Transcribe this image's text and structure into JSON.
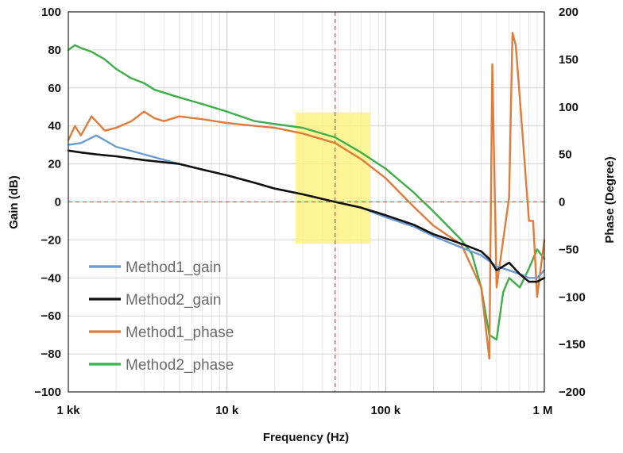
{
  "chart_data": {
    "type": "line",
    "xlabel": "Frequency (Hz)",
    "ylabel": "Gain (dB)",
    "y2label": "Phase (Degree)",
    "xscale": "log",
    "xlim": [
      1000,
      1000000
    ],
    "ylim": [
      -100,
      100
    ],
    "y2lim": [
      -200,
      200
    ],
    "grid": true,
    "x_ticks": [
      {
        "value": 1000,
        "label": "1 kk"
      },
      {
        "value": 10000,
        "label": "10 k"
      },
      {
        "value": 100000,
        "label": "100 k"
      },
      {
        "value": 1000000,
        "label": "1 M"
      }
    ],
    "y_ticks": [
      {
        "value": 100,
        "label": "100"
      },
      {
        "value": 80,
        "label": "80"
      },
      {
        "value": 60,
        "label": "60"
      },
      {
        "value": 40,
        "label": "40"
      },
      {
        "value": 20,
        "label": "20"
      },
      {
        "value": 0,
        "label": "0"
      },
      {
        "value": -20,
        "label": "−20"
      },
      {
        "value": -40,
        "label": "−40"
      },
      {
        "value": -60,
        "label": "−60"
      },
      {
        "value": -80,
        "label": "−80"
      },
      {
        "value": -100,
        "label": "−100"
      }
    ],
    "y2_ticks": [
      {
        "value": 200,
        "label": "200"
      },
      {
        "value": 150,
        "label": "150"
      },
      {
        "value": 100,
        "label": "100"
      },
      {
        "value": 50,
        "label": "50"
      },
      {
        "value": 0,
        "label": "0"
      },
      {
        "value": -50,
        "label": "−50"
      },
      {
        "value": -100,
        "label": "−100"
      },
      {
        "value": -150,
        "label": "−150"
      },
      {
        "value": -200,
        "label": "−200"
      }
    ],
    "reference_lines": {
      "x": 48000,
      "y": 0,
      "color": "#d9534f"
    },
    "highlight_region": {
      "x_from": 27000,
      "x_to": 80000,
      "y_from": -22,
      "y_to": 47,
      "color": "#fff27a"
    },
    "legend_position": "bottom-left",
    "series": [
      {
        "name": "Method1_gain",
        "axis": "left",
        "color": "#6a9bd1",
        "x": [
          1000,
          1200,
          1500,
          2000,
          3000,
          5000,
          7000,
          10000,
          15000,
          20000,
          30000,
          48000,
          70000,
          100000,
          150000,
          200000,
          300000,
          400000,
          500000,
          600000,
          700000,
          800000,
          900000,
          1000000
        ],
        "y": [
          30,
          31,
          35,
          29,
          25,
          20,
          17,
          14,
          10,
          7,
          4,
          0,
          -3,
          -8,
          -13,
          -18,
          -24,
          -28,
          -34,
          -36,
          -38,
          -40,
          -40,
          -36
        ]
      },
      {
        "name": "Method2_gain",
        "axis": "left",
        "color": "#111111",
        "x": [
          1000,
          1200,
          1500,
          2000,
          3000,
          5000,
          7000,
          10000,
          15000,
          20000,
          30000,
          48000,
          70000,
          100000,
          150000,
          200000,
          300000,
          400000,
          450000,
          500000,
          600000,
          700000,
          800000,
          900000,
          1000000
        ],
        "y": [
          27,
          26,
          25,
          24,
          22,
          20,
          17,
          14,
          10,
          7,
          4,
          0,
          -3,
          -7,
          -12,
          -17,
          -22,
          -26,
          -30,
          -36,
          -32,
          -38,
          -42,
          -42,
          -40
        ]
      },
      {
        "name": "Method1_phase",
        "axis": "right",
        "color": "#e07b39",
        "x": [
          1000,
          1100,
          1200,
          1400,
          1700,
          2000,
          2500,
          3000,
          3500,
          4000,
          5000,
          7000,
          10000,
          15000,
          20000,
          30000,
          48000,
          70000,
          100000,
          150000,
          200000,
          300000,
          400000,
          450000,
          470000,
          500000,
          550000,
          600000,
          630000,
          660000,
          700000,
          800000,
          850000,
          900000,
          1000000
        ],
        "y": [
          65,
          80,
          70,
          90,
          75,
          78,
          85,
          95,
          88,
          85,
          90,
          87,
          83,
          80,
          78,
          72,
          62,
          45,
          25,
          -5,
          -25,
          -45,
          -90,
          -165,
          145,
          -90,
          -40,
          5,
          178,
          165,
          110,
          -20,
          -20,
          -100,
          -40
        ]
      },
      {
        "name": "Method2_phase",
        "axis": "right",
        "color": "#3fae49",
        "x": [
          1000,
          1100,
          1200,
          1400,
          1700,
          2000,
          2500,
          3000,
          3500,
          4000,
          5000,
          7000,
          10000,
          15000,
          20000,
          30000,
          48000,
          70000,
          100000,
          150000,
          200000,
          300000,
          350000,
          400000,
          450000,
          500000,
          550000,
          600000,
          700000,
          800000,
          900000,
          1000000
        ],
        "y": [
          160,
          165,
          162,
          158,
          150,
          140,
          130,
          125,
          118,
          115,
          110,
          103,
          95,
          85,
          82,
          78,
          68,
          52,
          35,
          10,
          -10,
          -40,
          -55,
          -90,
          -140,
          -145,
          -95,
          -80,
          -90,
          -70,
          -50,
          -60
        ]
      }
    ]
  }
}
